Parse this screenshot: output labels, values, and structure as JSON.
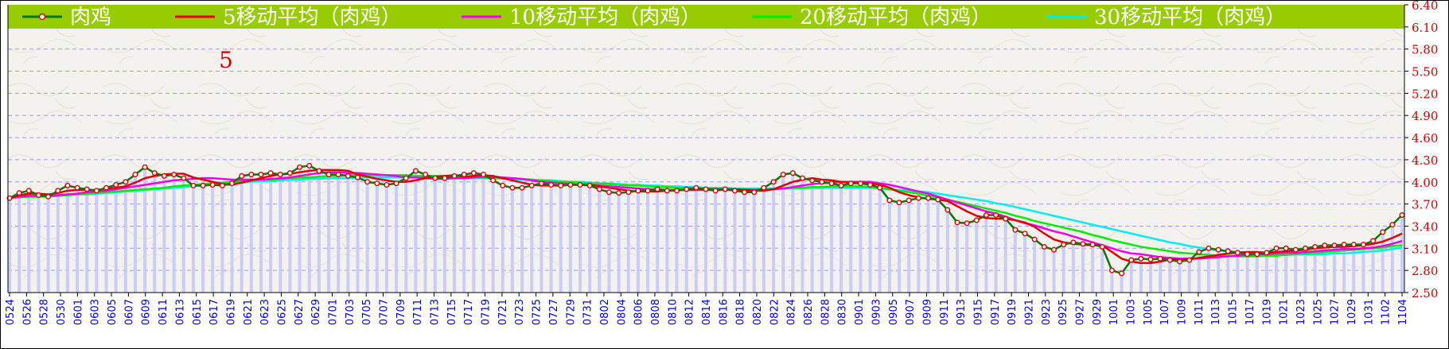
{
  "chart_data": {
    "type": "line",
    "panel_label": "5",
    "legend": [
      {
        "name": "肉鸡",
        "color": "#007a00",
        "marker": true
      },
      {
        "name": "5移动平均（肉鸡）",
        "color": "#e00000"
      },
      {
        "name": "10移动平均（肉鸡）",
        "color": "#ee00ee"
      },
      {
        "name": "20移动平均（肉鸡）",
        "color": "#00ee00"
      },
      {
        "name": "30移动平均（肉鸡）",
        "color": "#00eeee"
      }
    ],
    "y_axis": {
      "ylim": [
        2.5,
        6.4
      ],
      "ticks": [
        "2.50",
        "2.80",
        "3.10",
        "3.40",
        "3.70",
        "4.00",
        "4.30",
        "4.60",
        "4.90",
        "5.20",
        "5.50",
        "5.80",
        "6.10",
        "6.40"
      ]
    },
    "x_ticks": [
      "0524",
      "0526",
      "0528",
      "0530",
      "0601",
      "0603",
      "0605",
      "0607",
      "0609",
      "0611",
      "0613",
      "0615",
      "0617",
      "0619",
      "0621",
      "0623",
      "0625",
      "0627",
      "0629",
      "0701",
      "0703",
      "0705",
      "0707",
      "0709",
      "0711",
      "0713",
      "0715",
      "0717",
      "0719",
      "0721",
      "0723",
      "0725",
      "0727",
      "0729",
      "0731",
      "0802",
      "0804",
      "0806",
      "0808",
      "0810",
      "0812",
      "0814",
      "0816",
      "0818",
      "0820",
      "0822",
      "0824",
      "0826",
      "0828",
      "0830",
      "0901",
      "0903",
      "0905",
      "0907",
      "0909",
      "0911",
      "0913",
      "0915",
      "0917",
      "0919",
      "0921",
      "0923",
      "0925",
      "0927",
      "0929",
      "1001",
      "1003",
      "1005",
      "1007",
      "1009",
      "1011",
      "1013",
      "1015",
      "1017",
      "1019",
      "1021",
      "1023",
      "1025",
      "1027",
      "1029",
      "1031",
      "1102",
      "1104"
    ],
    "series": [
      {
        "name": "肉鸡",
        "color": "#007a00",
        "values": [
          3.78,
          3.85,
          3.88,
          3.82,
          3.8,
          3.88,
          3.95,
          3.92,
          3.9,
          3.88,
          3.92,
          3.96,
          4.0,
          4.1,
          4.2,
          4.12,
          4.08,
          4.1,
          4.05,
          3.95,
          3.95,
          3.96,
          3.95,
          3.98,
          4.08,
          4.1,
          4.1,
          4.12,
          4.1,
          4.12,
          4.2,
          4.22,
          4.15,
          4.1,
          4.1,
          4.08,
          4.06,
          4.0,
          3.98,
          3.96,
          3.98,
          4.05,
          4.15,
          4.1,
          4.05,
          4.05,
          4.08,
          4.1,
          4.12,
          4.1,
          4.02,
          3.95,
          3.92,
          3.92,
          3.95,
          3.98,
          3.96,
          3.95,
          3.96,
          3.96,
          3.95,
          3.9,
          3.86,
          3.85,
          3.86,
          3.88,
          3.88,
          3.9,
          3.88,
          3.88,
          3.9,
          3.92,
          3.9,
          3.88,
          3.9,
          3.88,
          3.86,
          3.86,
          3.92,
          4.0,
          4.1,
          4.12,
          4.05,
          4.02,
          4.0,
          3.98,
          3.95,
          3.98,
          3.98,
          3.96,
          3.92,
          3.75,
          3.72,
          3.75,
          3.78,
          3.78,
          3.76,
          3.62,
          3.45,
          3.44,
          3.48,
          3.55,
          3.55,
          3.5,
          3.35,
          3.3,
          3.22,
          3.12,
          3.08,
          3.15,
          3.18,
          3.16,
          3.15,
          3.12,
          2.8,
          2.76,
          2.94,
          2.96,
          2.95,
          2.96,
          2.94,
          2.92,
          2.94,
          3.05,
          3.1,
          3.08,
          3.06,
          3.04,
          3.02,
          3.02,
          3.04,
          3.1,
          3.1,
          3.08,
          3.1,
          3.12,
          3.14,
          3.14,
          3.15,
          3.15,
          3.15,
          3.2,
          3.32,
          3.42,
          3.55
        ]
      },
      {
        "name": "5移动平均（肉鸡）",
        "color": "#e00000",
        "values": [
          3.78,
          3.82,
          3.84,
          3.84,
          3.83,
          3.85,
          3.88,
          3.89,
          3.89,
          3.89,
          3.91,
          3.92,
          3.94,
          3.99,
          4.05,
          4.08,
          4.1,
          4.11,
          4.11,
          4.06,
          4.03,
          4.0,
          3.97,
          3.96,
          3.99,
          4.02,
          4.05,
          4.08,
          4.1,
          4.11,
          4.13,
          4.15,
          4.16,
          4.16,
          4.16,
          4.15,
          4.1,
          4.07,
          4.04,
          4.02,
          4.0,
          4.0,
          4.02,
          4.05,
          4.07,
          4.08,
          4.09,
          4.07,
          4.08,
          4.09,
          4.08,
          4.05,
          4.02,
          3.99,
          3.96,
          3.95,
          3.95,
          3.95,
          3.96,
          3.96,
          3.96,
          3.94,
          3.92,
          3.9,
          3.88,
          3.87,
          3.87,
          3.87,
          3.88,
          3.89,
          3.89,
          3.9,
          3.9,
          3.9,
          3.9,
          3.9,
          3.89,
          3.88,
          3.88,
          3.9,
          3.95,
          4.0,
          4.03,
          4.05,
          4.03,
          4.02,
          4.0,
          3.99,
          3.99,
          3.98,
          3.96,
          3.92,
          3.86,
          3.82,
          3.79,
          3.77,
          3.76,
          3.74,
          3.67,
          3.6,
          3.54,
          3.51,
          3.5,
          3.5,
          3.48,
          3.45,
          3.39,
          3.3,
          3.22,
          3.18,
          3.16,
          3.15,
          3.14,
          3.14,
          3.05,
          2.96,
          2.92,
          2.9,
          2.9,
          2.92,
          2.95,
          2.95,
          2.95,
          2.97,
          2.99,
          3.01,
          3.03,
          3.04,
          3.05,
          3.05,
          3.04,
          3.05,
          3.06,
          3.07,
          3.08,
          3.1,
          3.11,
          3.12,
          3.12,
          3.13,
          3.14,
          3.16,
          3.19,
          3.24,
          3.3
        ]
      },
      {
        "name": "10移动平均（肉鸡）",
        "color": "#ee00ee",
        "values": [
          3.78,
          3.8,
          3.81,
          3.81,
          3.81,
          3.82,
          3.83,
          3.84,
          3.86,
          3.87,
          3.88,
          3.9,
          3.92,
          3.94,
          3.96,
          3.98,
          4.0,
          4.02,
          4.03,
          4.04,
          4.05,
          4.05,
          4.04,
          4.03,
          4.03,
          4.03,
          4.03,
          4.04,
          4.05,
          4.06,
          4.08,
          4.1,
          4.12,
          4.13,
          4.13,
          4.12,
          4.12,
          4.11,
          4.1,
          4.09,
          4.08,
          4.06,
          4.06,
          4.05,
          4.04,
          4.04,
          4.05,
          4.05,
          4.06,
          4.07,
          4.07,
          4.06,
          4.05,
          4.04,
          4.02,
          4.0,
          3.99,
          3.98,
          3.97,
          3.96,
          3.96,
          3.95,
          3.94,
          3.93,
          3.92,
          3.91,
          3.9,
          3.9,
          3.89,
          3.89,
          3.89,
          3.89,
          3.89,
          3.89,
          3.89,
          3.89,
          3.89,
          3.89,
          3.89,
          3.9,
          3.91,
          3.93,
          3.95,
          3.97,
          3.98,
          3.99,
          4.0,
          4.0,
          4.0,
          4.0,
          3.98,
          3.96,
          3.93,
          3.9,
          3.87,
          3.84,
          3.8,
          3.76,
          3.72,
          3.68,
          3.64,
          3.6,
          3.57,
          3.53,
          3.48,
          3.44,
          3.41,
          3.37,
          3.33,
          3.3,
          3.26,
          3.22,
          3.18,
          3.14,
          3.1,
          3.06,
          3.03,
          3.02,
          3.0,
          2.98,
          2.97,
          2.96,
          2.96,
          2.96,
          2.97,
          2.98,
          2.99,
          3.0,
          3.01,
          3.02,
          3.02,
          3.03,
          3.04,
          3.04,
          3.05,
          3.06,
          3.07,
          3.08,
          3.09,
          3.09,
          3.1,
          3.11,
          3.13,
          3.16,
          3.2
        ]
      },
      {
        "name": "20移动平均（肉鸡）",
        "color": "#00ee00",
        "values": [
          3.78,
          3.79,
          3.8,
          3.8,
          3.8,
          3.81,
          3.82,
          3.83,
          3.84,
          3.85,
          3.86,
          3.87,
          3.88,
          3.89,
          3.9,
          3.91,
          3.92,
          3.94,
          3.95,
          3.96,
          3.97,
          3.98,
          3.99,
          4.0,
          4.01,
          4.02,
          4.03,
          4.03,
          4.04,
          4.05,
          4.06,
          4.06,
          4.07,
          4.08,
          4.08,
          4.09,
          4.09,
          4.09,
          4.09,
          4.09,
          4.09,
          4.09,
          4.08,
          4.08,
          4.08,
          4.08,
          4.07,
          4.07,
          4.07,
          4.06,
          4.06,
          4.05,
          4.05,
          4.04,
          4.03,
          4.02,
          4.01,
          4.0,
          4.0,
          3.99,
          3.98,
          3.98,
          3.97,
          3.96,
          3.95,
          3.95,
          3.94,
          3.93,
          3.93,
          3.92,
          3.92,
          3.91,
          3.91,
          3.9,
          3.9,
          3.9,
          3.9,
          3.9,
          3.9,
          3.9,
          3.91,
          3.92,
          3.92,
          3.93,
          3.93,
          3.94,
          3.94,
          3.94,
          3.94,
          3.93,
          3.92,
          3.9,
          3.88,
          3.86,
          3.84,
          3.81,
          3.79,
          3.76,
          3.73,
          3.7,
          3.67,
          3.64,
          3.61,
          3.58,
          3.54,
          3.51,
          3.47,
          3.44,
          3.41,
          3.38,
          3.35,
          3.32,
          3.28,
          3.25,
          3.21,
          3.18,
          3.15,
          3.12,
          3.1,
          3.08,
          3.06,
          3.04,
          3.03,
          3.02,
          3.01,
          3.0,
          3.0,
          2.99,
          2.99,
          2.99,
          3.0,
          3.0,
          3.01,
          3.02,
          3.03,
          3.04,
          3.05,
          3.06,
          3.07,
          3.08,
          3.09,
          3.1,
          3.11,
          3.13,
          3.14
        ]
      },
      {
        "name": "30移动平均（肉鸡）",
        "color": "#00eeee",
        "values": [
          3.78,
          3.79,
          3.8,
          3.8,
          3.81,
          3.81,
          3.82,
          3.83,
          3.83,
          3.84,
          3.85,
          3.86,
          3.87,
          3.88,
          3.89,
          3.9,
          3.91,
          3.92,
          3.93,
          3.94,
          3.95,
          3.96,
          3.97,
          3.98,
          3.99,
          4.0,
          4.01,
          4.01,
          4.02,
          4.03,
          4.03,
          4.04,
          4.04,
          4.05,
          4.05,
          4.05,
          4.06,
          4.06,
          4.06,
          4.06,
          4.06,
          4.06,
          4.06,
          4.06,
          4.06,
          4.06,
          4.06,
          4.06,
          4.05,
          4.05,
          4.05,
          4.04,
          4.04,
          4.03,
          4.03,
          4.02,
          4.02,
          4.01,
          4.0,
          4.0,
          3.99,
          3.98,
          3.98,
          3.97,
          3.96,
          3.96,
          3.95,
          3.95,
          3.94,
          3.94,
          3.93,
          3.93,
          3.92,
          3.92,
          3.92,
          3.91,
          3.91,
          3.91,
          3.91,
          3.91,
          3.91,
          3.91,
          3.91,
          3.92,
          3.92,
          3.92,
          3.92,
          3.92,
          3.92,
          3.92,
          3.91,
          3.9,
          3.89,
          3.88,
          3.87,
          3.86,
          3.84,
          3.82,
          3.8,
          3.78,
          3.76,
          3.74,
          3.71,
          3.69,
          3.66,
          3.63,
          3.6,
          3.57,
          3.54,
          3.51,
          3.48,
          3.45,
          3.42,
          3.39,
          3.36,
          3.33,
          3.3,
          3.27,
          3.24,
          3.21,
          3.18,
          3.16,
          3.13,
          3.11,
          3.09,
          3.07,
          3.06,
          3.05,
          3.04,
          3.03,
          3.03,
          3.02,
          3.02,
          3.02,
          3.02,
          3.02,
          3.02,
          3.03,
          3.03,
          3.04,
          3.05,
          3.06,
          3.07,
          3.09,
          3.11
        ]
      }
    ]
  }
}
